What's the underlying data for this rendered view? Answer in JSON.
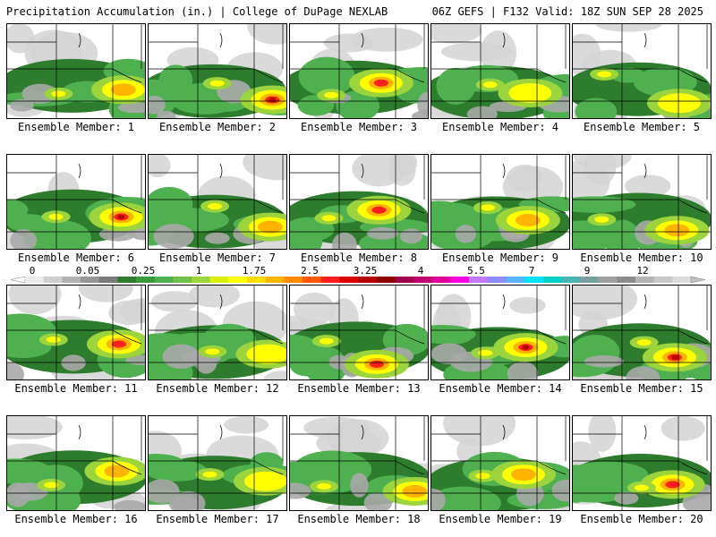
{
  "header": {
    "left_title": "Precipitation Accumulation (in.) | College of DuPage NEXLAB",
    "right_title": "06Z GEFS | F132 Valid: 18Z SUN SEP 28 2025"
  },
  "member_label_prefix": "Ensemble Member:",
  "members": [
    {
      "label": "Ensemble Member: 1",
      "max_level": 14
    },
    {
      "label": "Ensemble Member: 2",
      "max_level": 17
    },
    {
      "label": "Ensemble Member: 3",
      "max_level": 16
    },
    {
      "label": "Ensemble Member: 4",
      "max_level": 13
    },
    {
      "label": "Ensemble Member: 5",
      "max_level": 13
    },
    {
      "label": "Ensemble Member: 6",
      "max_level": 17
    },
    {
      "label": "Ensemble Member: 7",
      "max_level": 14
    },
    {
      "label": "Ensemble Member: 8",
      "max_level": 16
    },
    {
      "label": "Ensemble Member: 9",
      "max_level": 15
    },
    {
      "label": "Ensemble Member: 10",
      "max_level": 14
    },
    {
      "label": "Ensemble Member: 11",
      "max_level": 16
    },
    {
      "label": "Ensemble Member: 12",
      "max_level": 13
    },
    {
      "label": "Ensemble Member: 13",
      "max_level": 16
    },
    {
      "label": "Ensemble Member: 14",
      "max_level": 17
    },
    {
      "label": "Ensemble Member: 15",
      "max_level": 18
    },
    {
      "label": "Ensemble Member: 16",
      "max_level": 15
    },
    {
      "label": "Ensemble Member: 17",
      "max_level": 13
    },
    {
      "label": "Ensemble Member: 18",
      "max_level": 15
    },
    {
      "label": "Ensemble Member: 19",
      "max_level": 14
    },
    {
      "label": "Ensemble Member: 20",
      "max_level": 16
    }
  ],
  "colorbar": {
    "tick_labels": [
      "0",
      "0.05",
      "0.25",
      "1",
      "1.75",
      "2.5",
      "3.25",
      "4",
      "5.5",
      "7",
      "9",
      "12"
    ],
    "colors": [
      "#ebebeb",
      "#cfcfcf",
      "#b3b3b3",
      "#969696",
      "#7a7a7a",
      "#2e7d2e",
      "#3a9a3a",
      "#4fb04f",
      "#6ec24a",
      "#9bd43c",
      "#d8f000",
      "#ffff00",
      "#ffdc00",
      "#ffb400",
      "#ff8c00",
      "#ff5a00",
      "#ff1e1e",
      "#dc0000",
      "#b40000",
      "#8c0000",
      "#a0004a",
      "#c0006e",
      "#e000a0",
      "#ff00e0",
      "#c878ff",
      "#8c8cff",
      "#5ab4ff",
      "#00e0ff",
      "#00d2c8",
      "#4ab4b4",
      "#78a0a0",
      "#a0a0a0",
      "#8c8c8c",
      "#b4b4b4",
      "#c8c8c8",
      "#dcdcdc"
    ]
  },
  "map_colors": {
    "background": "#ffffff",
    "light_gray": "#d4d4d4",
    "mid_gray": "#a8a8a8",
    "dark_green": "#2e7d2e",
    "green": "#4fb04f",
    "light_green": "#9bd43c",
    "yellow": "#ffff00",
    "orange": "#ffb400",
    "red": "#ff1e1e",
    "dark_red": "#b40000",
    "lines": "#000000"
  }
}
